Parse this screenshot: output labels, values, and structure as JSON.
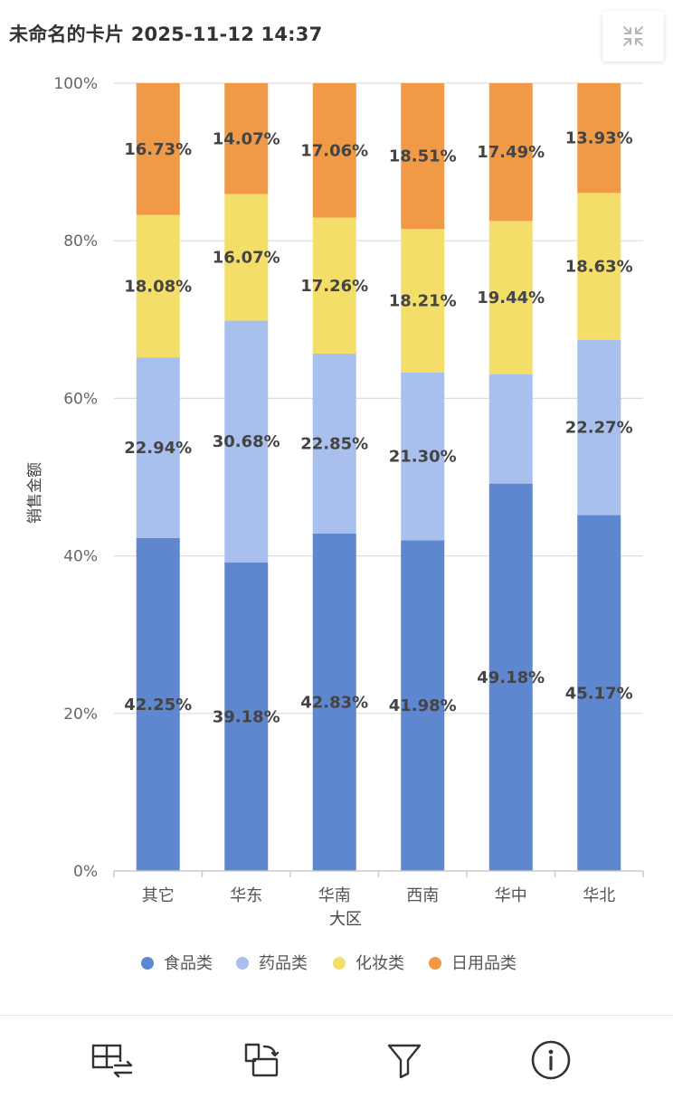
{
  "header": {
    "title": "未命名的卡片 2025-11-12 14:37"
  },
  "toolbar": {
    "icons": [
      "table-swap-icon",
      "rotate-icon",
      "filter-icon",
      "info-icon"
    ]
  },
  "chart_data": {
    "type": "bar",
    "stacked": true,
    "percent": true,
    "categories": [
      "其它",
      "华东",
      "华南",
      "西南",
      "华中",
      "华北"
    ],
    "series": [
      {
        "name": "食品类",
        "color": "#5f87d0",
        "values": [
          42.25,
          39.18,
          42.83,
          41.98,
          49.18,
          45.17
        ],
        "labels": [
          "42.25%",
          "39.18%",
          "42.83%",
          "41.98%",
          "49.18%",
          "45.17%"
        ]
      },
      {
        "name": "药品类",
        "color": "#a9bfee",
        "values": [
          22.94,
          30.68,
          22.85,
          21.3,
          13.89,
          22.27
        ],
        "labels": [
          "22.94%",
          "30.68%",
          "22.85%",
          "21.30%",
          "",
          "22.27%"
        ]
      },
      {
        "name": "化妆类",
        "color": "#f4de6a",
        "values": [
          18.08,
          16.07,
          17.26,
          18.21,
          19.44,
          18.63
        ],
        "labels": [
          "18.08%",
          "16.07%",
          "17.26%",
          "18.21%",
          "19.44%",
          "18.63%"
        ]
      },
      {
        "name": "日用品类",
        "color": "#f09a47",
        "values": [
          16.73,
          14.07,
          17.06,
          18.51,
          17.49,
          13.93
        ],
        "labels": [
          "16.73%",
          "14.07%",
          "17.06%",
          "18.51%",
          "17.49%",
          "13.93%"
        ]
      }
    ],
    "ylabel": "销售金额",
    "xlabel": "大区",
    "ylim": [
      0,
      100
    ],
    "yticks": [
      "0%",
      "20%",
      "40%",
      "60%",
      "80%",
      "100%"
    ],
    "grid": true,
    "legend": "bottom"
  }
}
